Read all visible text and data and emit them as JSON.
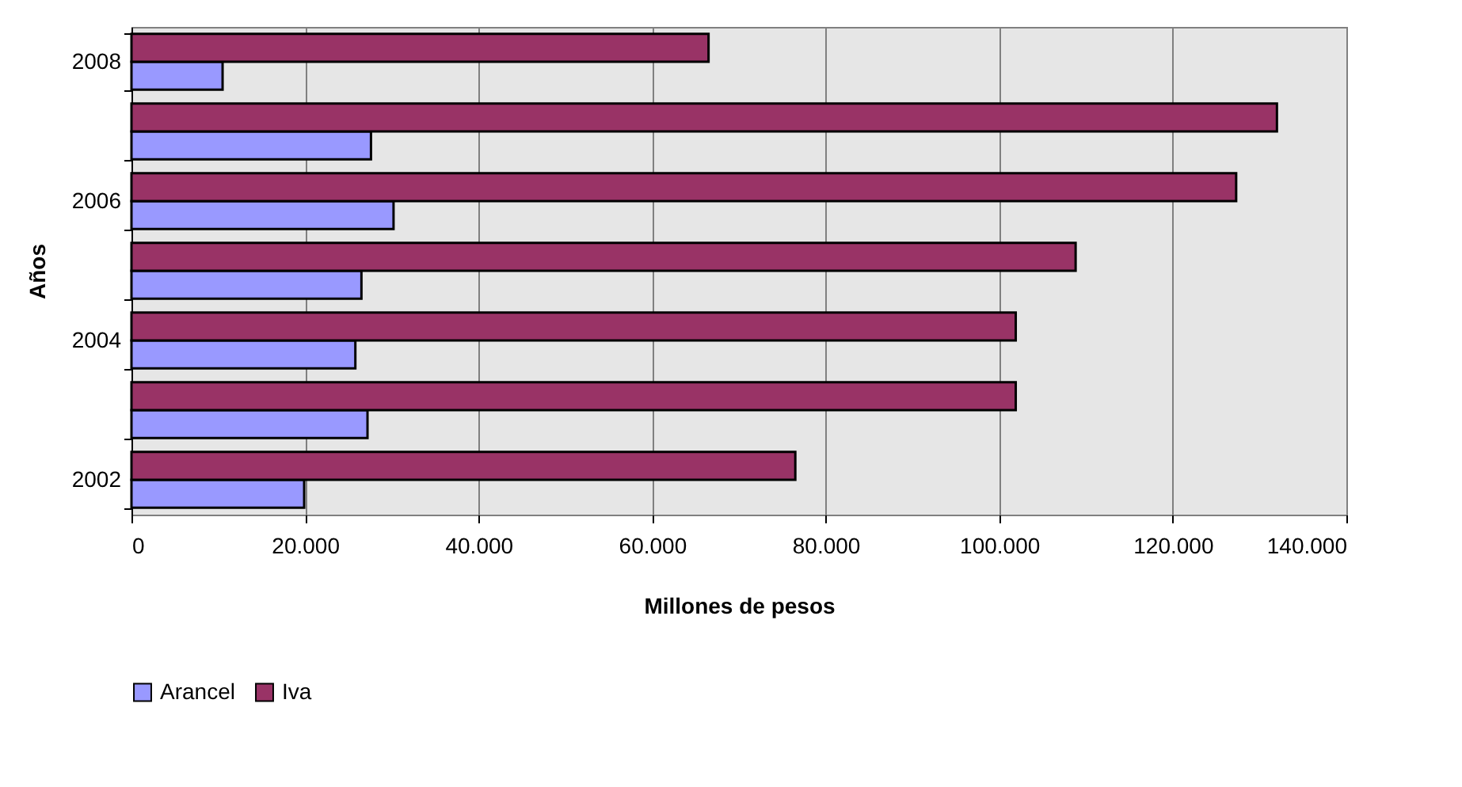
{
  "chart_data": {
    "type": "bar",
    "orientation": "horizontal",
    "xlabel": "Millones de pesos",
    "ylabel": "Años",
    "categories": [
      "2008",
      null,
      "2006",
      null,
      "2004",
      null,
      "2002"
    ],
    "series": [
      {
        "name": "Arancel",
        "color": "#9999ff",
        "values": [
          10500,
          27600,
          30200,
          26500,
          25800,
          27200,
          19900
        ]
      },
      {
        "name": "Iva",
        "color": "#993366",
        "values": [
          66500,
          132000,
          127300,
          108800,
          101900,
          101900,
          76500
        ]
      }
    ],
    "xlim": [
      0,
      140000
    ],
    "xticks": [
      0,
      {
        "value": 20000,
        "label": "20.000"
      },
      {
        "value": 40000,
        "label": "40.000"
      },
      {
        "value": 60000,
        "label": "60.000"
      },
      {
        "value": 80000,
        "label": "80.000"
      },
      {
        "value": 100000,
        "label": "100.000"
      },
      {
        "value": 120000,
        "label": "120.000"
      },
      {
        "value": 140000,
        "label": "140.000"
      }
    ],
    "grid": "x",
    "legend": "bottom"
  }
}
